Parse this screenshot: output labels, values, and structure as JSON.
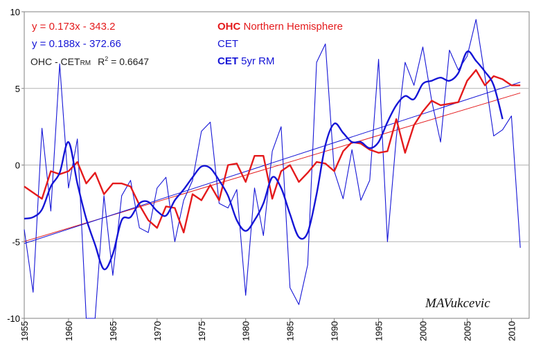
{
  "chart_data": {
    "type": "line",
    "xlim": [
      1955,
      2012
    ],
    "ylim": [
      -10,
      10
    ],
    "xticks": [
      1955,
      1960,
      1965,
      1970,
      1975,
      1980,
      1985,
      1990,
      1995,
      2000,
      2005,
      2010
    ],
    "yticks": [
      -10,
      -5,
      0,
      5,
      10
    ],
    "grid": "horizontal",
    "colors": {
      "ohc": "#e41a1c",
      "cet": "#1515d6",
      "trend_ohc": "#e41a1c",
      "trend_cet": "#1515d6"
    },
    "equations": {
      "ohc": "y = 0.173x - 343.2",
      "cet": "y = 0.188x - 372.66",
      "r2_prefix": "OHC - CET",
      "r2_sub": "RM",
      "r2_text": "R",
      "r2_sup": "2",
      "r2_value": " = 0.6647"
    },
    "legend": {
      "ohc_bold": "OHC",
      "ohc_rest": " Northern Hemisphere",
      "cet": "CET",
      "cet_rm_bold": "CET",
      "cet_rm_rest": " 5yr RM"
    },
    "signature": "MAVukcevic",
    "series": [
      {
        "key": "ohc",
        "x": [
          1955,
          1956,
          1957,
          1958,
          1959,
          1960,
          1961,
          1962,
          1963,
          1964,
          1965,
          1966,
          1967,
          1968,
          1969,
          1970,
          1971,
          1972,
          1973,
          1974,
          1975,
          1976,
          1977,
          1978,
          1979,
          1980,
          1981,
          1982,
          1983,
          1984,
          1985,
          1986,
          1987,
          1988,
          1989,
          1990,
          1991,
          1992,
          1993,
          1994,
          1995,
          1996,
          1997,
          1998,
          1999,
          2000,
          2001,
          2002,
          2003,
          2004,
          2005,
          2006,
          2007,
          2008,
          2009,
          2010,
          2011
        ],
        "values": [
          -1.4,
          -1.8,
          -2.2,
          -0.4,
          -0.6,
          -0.4,
          0.2,
          -1.2,
          -0.5,
          -1.9,
          -1.2,
          -1.2,
          -1.4,
          -2.6,
          -3.6,
          -4.1,
          -2.7,
          -2.8,
          -4.4,
          -1.9,
          -2.3,
          -1.3,
          -2.3,
          0.0,
          0.1,
          -1.1,
          0.6,
          0.6,
          -2.2,
          -0.4,
          0.0,
          -1.1,
          -0.5,
          0.2,
          0.1,
          -0.4,
          0.9,
          1.5,
          1.4,
          1.0,
          0.8,
          0.9,
          3.0,
          0.8,
          2.6,
          3.5,
          4.2,
          3.9,
          4.0,
          4.1,
          5.5,
          6.2,
          5.2,
          5.8,
          5.6,
          5.2,
          5.2
        ]
      },
      {
        "key": "cet",
        "x": [
          1955,
          1956,
          1957,
          1958,
          1959,
          1960,
          1961,
          1962,
          1963,
          1964,
          1965,
          1966,
          1967,
          1968,
          1969,
          1970,
          1971,
          1972,
          1973,
          1974,
          1975,
          1976,
          1977,
          1978,
          1979,
          1980,
          1981,
          1982,
          1983,
          1984,
          1985,
          1986,
          1987,
          1988,
          1989,
          1990,
          1991,
          1992,
          1993,
          1994,
          1995,
          1996,
          1997,
          1998,
          1999,
          2000,
          2001,
          2002,
          2003,
          2004,
          2005,
          2006,
          2007,
          2008,
          2009,
          2010,
          2011
        ],
        "values": [
          -4.2,
          -8.3,
          2.4,
          -3.0,
          6.6,
          -1.5,
          1.7,
          -10.0,
          -10.0,
          -2.0,
          -7.2,
          -2.0,
          -1.0,
          -4.1,
          -4.4,
          -1.5,
          -0.8,
          -5.0,
          -2.3,
          -1.0,
          2.2,
          2.8,
          -2.5,
          -2.8,
          -1.6,
          -8.5,
          -1.5,
          -4.6,
          0.9,
          2.5,
          -8.0,
          -9.1,
          -6.5,
          6.7,
          7.9,
          -0.4,
          -2.2,
          1.0,
          -2.3,
          -1.0,
          6.9,
          -5.0,
          1.8,
          6.7,
          5.2,
          7.7,
          4.2,
          1.5,
          7.5,
          6.2,
          7.1,
          9.5,
          5.8,
          1.9,
          2.3,
          3.2,
          -5.4
        ]
      },
      {
        "key": "cet_rm",
        "x": [
          1955,
          1956,
          1957,
          1958,
          1959,
          1960,
          1961,
          1962,
          1963,
          1964,
          1965,
          1966,
          1967,
          1968,
          1969,
          1970,
          1971,
          1972,
          1973,
          1974,
          1975,
          1976,
          1977,
          1978,
          1979,
          1980,
          1981,
          1982,
          1983,
          1984,
          1985,
          1986,
          1987,
          1988,
          1989,
          1990,
          1991,
          1992,
          1993,
          1994,
          1995,
          1996,
          1997,
          1998,
          1999,
          2000,
          2001,
          2002,
          2003,
          2004,
          2005,
          2006,
          2007,
          2008,
          2009
        ],
        "values": [
          -3.5,
          -3.4,
          -2.9,
          -1.4,
          -0.5,
          1.5,
          -1.2,
          -3.5,
          -5.2,
          -6.8,
          -5.8,
          -3.6,
          -3.4,
          -2.5,
          -2.4,
          -3.0,
          -3.3,
          -2.3,
          -1.6,
          -0.8,
          -0.1,
          -0.2,
          -1.0,
          -2.0,
          -3.6,
          -4.3,
          -3.6,
          -2.5,
          -0.8,
          -1.5,
          -3.2,
          -4.7,
          -4.4,
          -1.9,
          1.3,
          2.7,
          2.1,
          1.5,
          1.5,
          1.1,
          1.5,
          2.8,
          3.9,
          4.5,
          4.3,
          5.3,
          5.5,
          5.7,
          5.5,
          6.0,
          7.4,
          6.8,
          6.1,
          5.2,
          3.0
        ]
      }
    ],
    "trends": [
      {
        "key": "trend_ohc",
        "slope": 0.173,
        "intercept": -343.2,
        "x": [
          1955,
          2011
        ]
      },
      {
        "key": "trend_cet",
        "slope": 0.188,
        "intercept": -372.66,
        "x": [
          1955,
          2011
        ]
      }
    ]
  }
}
